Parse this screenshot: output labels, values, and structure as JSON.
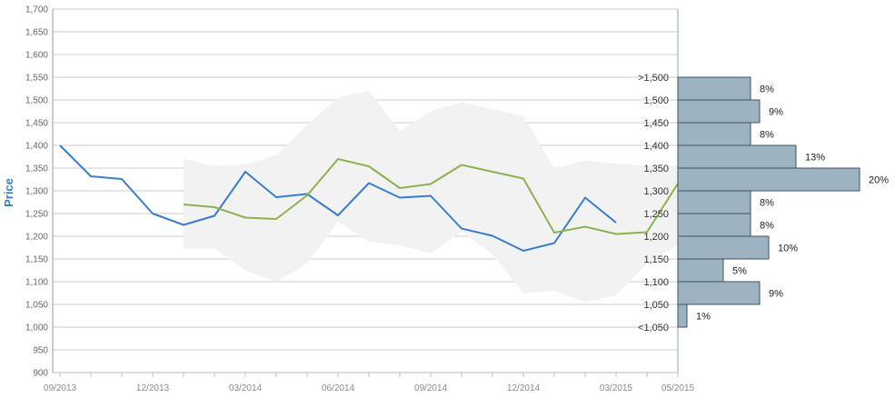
{
  "chart_data": [
    {
      "type": "line",
      "ylabel": "Price",
      "ylim": [
        900,
        1700
      ],
      "yticks": [
        "900",
        "950",
        "1,000",
        "1,050",
        "1,100",
        "1,150",
        "1,200",
        "1,250",
        "1,300",
        "1,350",
        "1,400",
        "1,450",
        "1,500",
        "1,550",
        "1,600",
        "1,650",
        "1,700"
      ],
      "xticks": [
        "09/2013",
        "12/2013",
        "03/2014",
        "06/2014",
        "09/2014",
        "12/2014",
        "03/2015",
        "05/2015"
      ],
      "x": [
        "09/2013",
        "10/2013",
        "11/2013",
        "12/2013",
        "01/2014",
        "02/2014",
        "03/2014",
        "04/2014",
        "05/2014",
        "06/2014",
        "07/2014",
        "08/2014",
        "09/2014",
        "10/2014",
        "11/2014",
        "12/2014",
        "01/2015",
        "02/2015",
        "03/2015",
        "04/2015",
        "05/2015"
      ],
      "series": [
        {
          "color": "#3a7dc9",
          "values": [
            1400,
            1332,
            1326,
            1250,
            1225,
            1245,
            1342,
            1286,
            1293,
            1246,
            1317,
            1285,
            1289,
            1217,
            1201,
            1168,
            1185,
            1285,
            1230,
            null,
            null
          ]
        },
        {
          "color": "#8db050",
          "values": [
            null,
            null,
            null,
            null,
            1270,
            1264,
            1241,
            1238,
            1290,
            1370,
            1354,
            1306,
            1315,
            1357,
            1342,
            1327,
            1208,
            1221,
            1205,
            1209,
            1316
          ]
        },
        {
          "type": "area",
          "color": "#f2f2f2",
          "upper": [
            null,
            null,
            null,
            null,
            1370,
            1355,
            1358,
            1378,
            1445,
            1505,
            1520,
            1432,
            1475,
            1495,
            1480,
            1465,
            1350,
            1367,
            1360,
            1355,
            1355
          ],
          "lower": [
            null,
            null,
            null,
            null,
            1172,
            1172,
            1125,
            1100,
            1140,
            1232,
            1188,
            1180,
            1162,
            1210,
            1160,
            1075,
            1080,
            1055,
            1070,
            1140,
            1180
          ]
        }
      ],
      "grid": true
    },
    {
      "type": "bar",
      "orientation": "horizontal",
      "color": "#9db3c2",
      "categories": [
        ">1,500",
        "1,500",
        "1,450",
        "1,400",
        "1,350",
        "1,300",
        "1,250",
        "1,200",
        "1,150",
        "1,100",
        "1,050",
        "<1,050"
      ],
      "values": [
        8,
        9,
        8,
        13,
        20,
        8,
        8,
        10,
        5,
        9,
        1,
        null
      ],
      "labels": [
        "8%",
        "9%",
        "8%",
        "13%",
        "20%",
        "8%",
        "8%",
        "10%",
        "5%",
        "9%",
        "1%",
        ""
      ]
    }
  ]
}
